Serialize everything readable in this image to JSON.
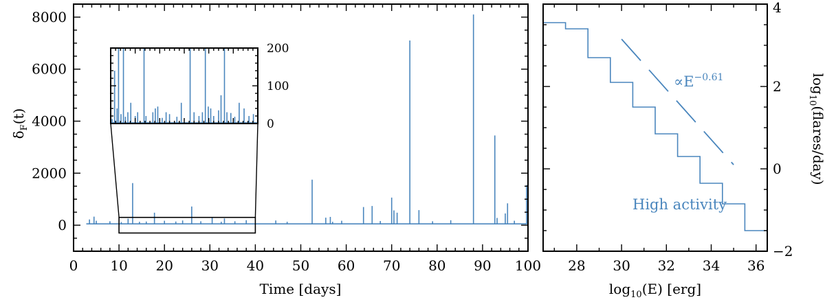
{
  "chart_data": [
    {
      "type": "line",
      "xlabel": "Time [days]",
      "ylabel": "δ_F(t)",
      "xlim": [
        0,
        100
      ],
      "ylim": [
        -1000,
        8500
      ],
      "x_ticks": [
        "0",
        "10",
        "20",
        "30",
        "40",
        "50",
        "60",
        "70",
        "80",
        "90",
        "100"
      ],
      "y_ticks": [
        "0",
        "2000",
        "4000",
        "6000",
        "8000"
      ],
      "color": "#4a86bd",
      "baseline": 50,
      "series": [
        {
          "spikes": [
            [
              3.5,
              220
            ],
            [
              4.5,
              330
            ],
            [
              5.0,
              170
            ],
            [
              8.0,
              150
            ],
            [
              10.5,
              120
            ],
            [
              12.0,
              250
            ],
            [
              13.0,
              1620
            ],
            [
              14.5,
              130
            ],
            [
              16.0,
              140
            ],
            [
              17.8,
              480
            ],
            [
              20.0,
              170
            ],
            [
              22.5,
              140
            ],
            [
              24.0,
              180
            ],
            [
              26.0,
              720
            ],
            [
              28.0,
              150
            ],
            [
              30.5,
              300
            ],
            [
              32.5,
              130
            ],
            [
              33.2,
              260
            ],
            [
              35.5,
              150
            ],
            [
              38.0,
              190
            ],
            [
              44.5,
              180
            ],
            [
              47.0,
              130
            ],
            [
              52.5,
              1750
            ],
            [
              55.5,
              290
            ],
            [
              56.5,
              320
            ],
            [
              57.0,
              130
            ],
            [
              59.0,
              170
            ],
            [
              63.8,
              700
            ],
            [
              65.7,
              740
            ],
            [
              67.5,
              160
            ],
            [
              70.0,
              1060
            ],
            [
              70.5,
              570
            ],
            [
              71.2,
              480
            ],
            [
              74.0,
              7100
            ],
            [
              76.0,
              580
            ],
            [
              79.0,
              150
            ],
            [
              83.0,
              190
            ],
            [
              88.0,
              8100
            ],
            [
              92.7,
              3450
            ],
            [
              93.2,
              280
            ],
            [
              95.0,
              450
            ],
            [
              95.5,
              840
            ],
            [
              97.0,
              170
            ]
          ],
          "end_segment": {
            "x": [
              99.7,
              100
            ],
            "y": 1520
          }
        }
      ],
      "zoom_box": {
        "x": [
          10,
          40
        ],
        "y": [
          -300,
          300
        ]
      }
    },
    {
      "type": "line",
      "role": "inset",
      "xlim": [
        10,
        40
      ],
      "ylim": [
        0,
        200
      ],
      "y_ticks": [
        "0",
        "100",
        "200"
      ],
      "series": [
        {
          "spikes": [
            [
              10.3,
              12
            ],
            [
              10.8,
              140
            ],
            [
              11.3,
              40
            ],
            [
              11.6,
              235
            ],
            [
              12.1,
              25
            ],
            [
              12.6,
              240
            ],
            [
              13.0,
              18
            ],
            [
              13.5,
              30
            ],
            [
              14.1,
              55
            ],
            [
              15.0,
              20
            ],
            [
              15.5,
              30
            ],
            [
              16.8,
              240
            ],
            [
              17.2,
              20
            ],
            [
              18.6,
              30
            ],
            [
              19.1,
              40
            ],
            [
              19.6,
              45
            ],
            [
              20.5,
              15
            ],
            [
              21.3,
              30
            ],
            [
              22.0,
              25
            ],
            [
              23.5,
              18
            ],
            [
              24.4,
              55
            ],
            [
              26.2,
              240
            ],
            [
              27.0,
              30
            ],
            [
              28.0,
              20
            ],
            [
              28.7,
              30
            ],
            [
              29.3,
              240
            ],
            [
              29.9,
              45
            ],
            [
              30.4,
              40
            ],
            [
              31.0,
              20
            ],
            [
              32.0,
              35
            ],
            [
              32.5,
              75
            ],
            [
              33.2,
              240
            ],
            [
              33.7,
              30
            ],
            [
              34.5,
              28
            ],
            [
              35.3,
              18
            ],
            [
              36.2,
              55
            ],
            [
              37.2,
              40
            ],
            [
              38.2,
              20
            ],
            [
              39.1,
              25
            ]
          ]
        }
      ]
    },
    {
      "type": "line",
      "xlabel": "log10(E) [erg]",
      "ylabel": "log10(flares/day)",
      "xlim": [
        26.5,
        36.5
      ],
      "ylim": [
        -2,
        4
      ],
      "x_ticks": [
        "28",
        "30",
        "32",
        "34",
        "36"
      ],
      "y_ticks": [
        "-2",
        "0",
        "2",
        "4"
      ],
      "series": [
        {
          "step_x": [
            26.5,
            27.5,
            28.5,
            29.5,
            30.5,
            31.5,
            32.5,
            33.5,
            34.5,
            35.5,
            36.5
          ],
          "step_y": [
            3.55,
            3.4,
            2.7,
            2.1,
            1.5,
            0.85,
            0.3,
            -0.35,
            -0.85,
            -1.5
          ]
        },
        {
          "style": "dashed",
          "x": [
            30.0,
            35.0
          ],
          "y": [
            3.15,
            0.1
          ]
        }
      ],
      "annotations": {
        "power_law_prefix": "∝E",
        "power_law_exponent": "−0.61",
        "activity": "High activity"
      }
    }
  ]
}
